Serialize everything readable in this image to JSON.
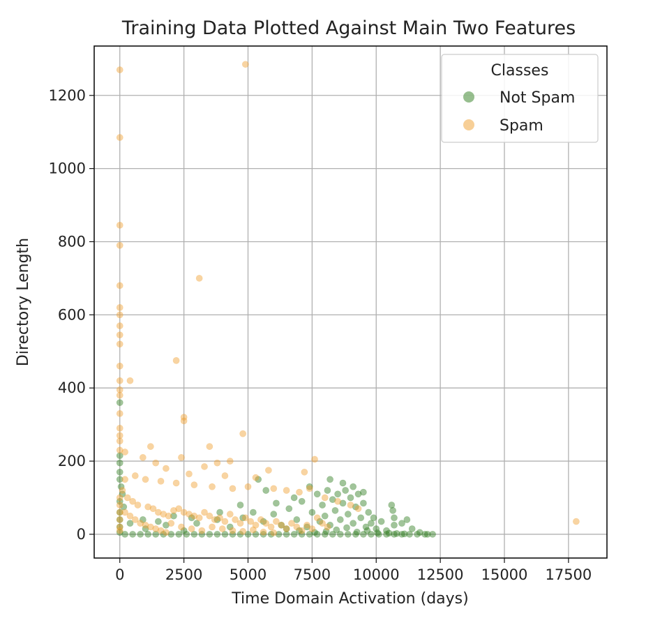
{
  "chart_data": {
    "type": "scatter",
    "title": "Training Data Plotted Against Main Two Features",
    "xlabel": "Time Domain Activation (days)",
    "ylabel": "Directory Length",
    "xlim": [
      -1000,
      19000
    ],
    "ylim": [
      -65,
      1335
    ],
    "xticks": [
      0,
      2500,
      5000,
      7500,
      10000,
      12500,
      15000,
      17500
    ],
    "yticks": [
      0,
      200,
      400,
      600,
      800,
      1000,
      1200
    ],
    "grid": true,
    "legend": {
      "title": "Classes",
      "position": "top-right"
    },
    "series": [
      {
        "name": "Not Spam",
        "color": "#2e7d1e",
        "alpha": 0.45,
        "points": [
          [
            0,
            360
          ],
          [
            0,
            215
          ],
          [
            0,
            195
          ],
          [
            0,
            170
          ],
          [
            0,
            150
          ],
          [
            50,
            130
          ],
          [
            100,
            110
          ],
          [
            0,
            90
          ],
          [
            150,
            75
          ],
          [
            0,
            60
          ],
          [
            0,
            40
          ],
          [
            0,
            20
          ],
          [
            0,
            5
          ],
          [
            200,
            0
          ],
          [
            500,
            0
          ],
          [
            800,
            0
          ],
          [
            1100,
            0
          ],
          [
            1400,
            0
          ],
          [
            1700,
            0
          ],
          [
            2000,
            0
          ],
          [
            2300,
            0
          ],
          [
            2600,
            0
          ],
          [
            2900,
            0
          ],
          [
            3200,
            0
          ],
          [
            3500,
            0
          ],
          [
            3800,
            0
          ],
          [
            4100,
            0
          ],
          [
            4400,
            0
          ],
          [
            4700,
            0
          ],
          [
            5000,
            0
          ],
          [
            5300,
            0
          ],
          [
            5600,
            0
          ],
          [
            5900,
            0
          ],
          [
            6200,
            0
          ],
          [
            6500,
            0
          ],
          [
            6800,
            0
          ],
          [
            7100,
            0
          ],
          [
            7400,
            0
          ],
          [
            7700,
            0
          ],
          [
            8000,
            0
          ],
          [
            8300,
            0
          ],
          [
            8600,
            0
          ],
          [
            8900,
            0
          ],
          [
            9200,
            0
          ],
          [
            9500,
            0
          ],
          [
            9800,
            0
          ],
          [
            10100,
            0
          ],
          [
            10400,
            0
          ],
          [
            10700,
            0
          ],
          [
            11000,
            0
          ],
          [
            11300,
            0
          ],
          [
            11600,
            0
          ],
          [
            11900,
            0
          ],
          [
            12200,
            0
          ],
          [
            1000,
            15
          ],
          [
            1800,
            25
          ],
          [
            2500,
            10
          ],
          [
            3000,
            30
          ],
          [
            3800,
            40
          ],
          [
            4300,
            20
          ],
          [
            4800,
            45
          ],
          [
            5200,
            60
          ],
          [
            5400,
            150
          ],
          [
            5600,
            35
          ],
          [
            6000,
            55
          ],
          [
            6300,
            25
          ],
          [
            6600,
            70
          ],
          [
            6900,
            40
          ],
          [
            7100,
            90
          ],
          [
            7300,
            20
          ],
          [
            7500,
            60
          ],
          [
            7700,
            110
          ],
          [
            7800,
            35
          ],
          [
            7900,
            80
          ],
          [
            8000,
            50
          ],
          [
            8100,
            120
          ],
          [
            8200,
            25
          ],
          [
            8300,
            95
          ],
          [
            8400,
            65
          ],
          [
            8500,
            110
          ],
          [
            8600,
            40
          ],
          [
            8700,
            85
          ],
          [
            8800,
            120
          ],
          [
            8900,
            55
          ],
          [
            9000,
            100
          ],
          [
            9100,
            30
          ],
          [
            9200,
            75
          ],
          [
            9300,
            110
          ],
          [
            9400,
            45
          ],
          [
            9500,
            85
          ],
          [
            9600,
            20
          ],
          [
            9700,
            60
          ],
          [
            9800,
            30
          ],
          [
            9900,
            45
          ],
          [
            10000,
            15
          ],
          [
            10200,
            35
          ],
          [
            10400,
            10
          ],
          [
            10600,
            80
          ],
          [
            10650,
            65
          ],
          [
            10700,
            45
          ],
          [
            10700,
            25
          ],
          [
            11000,
            30
          ],
          [
            11200,
            40
          ],
          [
            11400,
            15
          ],
          [
            11700,
            5
          ],
          [
            12000,
            0
          ],
          [
            8200,
            150
          ],
          [
            8700,
            140
          ],
          [
            9100,
            130
          ],
          [
            9500,
            115
          ],
          [
            7400,
            130
          ],
          [
            6800,
            100
          ],
          [
            6100,
            85
          ],
          [
            5700,
            120
          ],
          [
            4700,
            80
          ],
          [
            3900,
            60
          ],
          [
            2800,
            45
          ],
          [
            2100,
            50
          ],
          [
            1500,
            35
          ],
          [
            900,
            40
          ],
          [
            400,
            30
          ],
          [
            6500,
            15
          ],
          [
            7000,
            10
          ],
          [
            7600,
            5
          ],
          [
            8050,
            8
          ],
          [
            8450,
            12
          ],
          [
            8850,
            18
          ],
          [
            9250,
            6
          ],
          [
            9650,
            10
          ],
          [
            10050,
            4
          ],
          [
            10500,
            3
          ],
          [
            10800,
            2
          ],
          [
            11100,
            1
          ]
        ]
      },
      {
        "name": "Spam",
        "color": "#f0a030",
        "alpha": 0.45,
        "points": [
          [
            0,
            1270
          ],
          [
            4900,
            1285
          ],
          [
            0,
            1085
          ],
          [
            0,
            845
          ],
          [
            0,
            790
          ],
          [
            3100,
            700
          ],
          [
            0,
            680
          ],
          [
            0,
            620
          ],
          [
            0,
            600
          ],
          [
            0,
            570
          ],
          [
            0,
            545
          ],
          [
            0,
            520
          ],
          [
            2200,
            475
          ],
          [
            0,
            460
          ],
          [
            0,
            420
          ],
          [
            400,
            420
          ],
          [
            0,
            395
          ],
          [
            0,
            380
          ],
          [
            0,
            330
          ],
          [
            2500,
            320
          ],
          [
            2500,
            310
          ],
          [
            0,
            290
          ],
          [
            4800,
            275
          ],
          [
            0,
            270
          ],
          [
            0,
            255
          ],
          [
            3500,
            240
          ],
          [
            1200,
            240
          ],
          [
            0,
            230
          ],
          [
            200,
            225
          ],
          [
            7600,
            205
          ],
          [
            4300,
            200
          ],
          [
            2400,
            210
          ],
          [
            900,
            210
          ],
          [
            3800,
            195
          ],
          [
            1400,
            195
          ],
          [
            3300,
            185
          ],
          [
            1800,
            180
          ],
          [
            5800,
            175
          ],
          [
            7200,
            170
          ],
          [
            2700,
            165
          ],
          [
            600,
            160
          ],
          [
            4100,
            160
          ],
          [
            5300,
            155
          ],
          [
            200,
            150
          ],
          [
            1000,
            150
          ],
          [
            1600,
            145
          ],
          [
            2200,
            140
          ],
          [
            2900,
            135
          ],
          [
            3600,
            130
          ],
          [
            4400,
            125
          ],
          [
            5000,
            130
          ],
          [
            6000,
            125
          ],
          [
            6500,
            120
          ],
          [
            7000,
            115
          ],
          [
            7400,
            125
          ],
          [
            8000,
            100
          ],
          [
            8500,
            90
          ],
          [
            9000,
            80
          ],
          [
            9300,
            70
          ],
          [
            100,
            120
          ],
          [
            300,
            100
          ],
          [
            500,
            90
          ],
          [
            700,
            80
          ],
          [
            1100,
            75
          ],
          [
            1300,
            70
          ],
          [
            1500,
            60
          ],
          [
            1700,
            55
          ],
          [
            1900,
            50
          ],
          [
            2100,
            65
          ],
          [
            2300,
            70
          ],
          [
            2500,
            60
          ],
          [
            2700,
            55
          ],
          [
            2900,
            50
          ],
          [
            3100,
            45
          ],
          [
            3300,
            60
          ],
          [
            3500,
            50
          ],
          [
            3700,
            40
          ],
          [
            3900,
            45
          ],
          [
            4100,
            35
          ],
          [
            4300,
            55
          ],
          [
            4500,
            40
          ],
          [
            4700,
            30
          ],
          [
            4900,
            45
          ],
          [
            5100,
            35
          ],
          [
            5300,
            25
          ],
          [
            5500,
            40
          ],
          [
            5700,
            30
          ],
          [
            5900,
            20
          ],
          [
            6100,
            35
          ],
          [
            6300,
            25
          ],
          [
            6500,
            15
          ],
          [
            6700,
            30
          ],
          [
            6900,
            20
          ],
          [
            7100,
            10
          ],
          [
            7300,
            25
          ],
          [
            7500,
            15
          ],
          [
            7700,
            45
          ],
          [
            7900,
            30
          ],
          [
            8100,
            20
          ],
          [
            200,
            60
          ],
          [
            400,
            50
          ],
          [
            600,
            40
          ],
          [
            800,
            30
          ],
          [
            1000,
            25
          ],
          [
            1200,
            20
          ],
          [
            1400,
            15
          ],
          [
            1600,
            10
          ],
          [
            1800,
            5
          ],
          [
            2000,
            30
          ],
          [
            2400,
            20
          ],
          [
            2800,
            15
          ],
          [
            3200,
            10
          ],
          [
            3600,
            20
          ],
          [
            4000,
            15
          ],
          [
            4400,
            10
          ],
          [
            4800,
            8
          ],
          [
            5200,
            12
          ],
          [
            5600,
            6
          ],
          [
            6000,
            4
          ],
          [
            0,
            100
          ],
          [
            0,
            80
          ],
          [
            0,
            60
          ],
          [
            0,
            40
          ],
          [
            0,
            20
          ],
          [
            0,
            10
          ],
          [
            17800,
            35
          ]
        ]
      }
    ]
  }
}
